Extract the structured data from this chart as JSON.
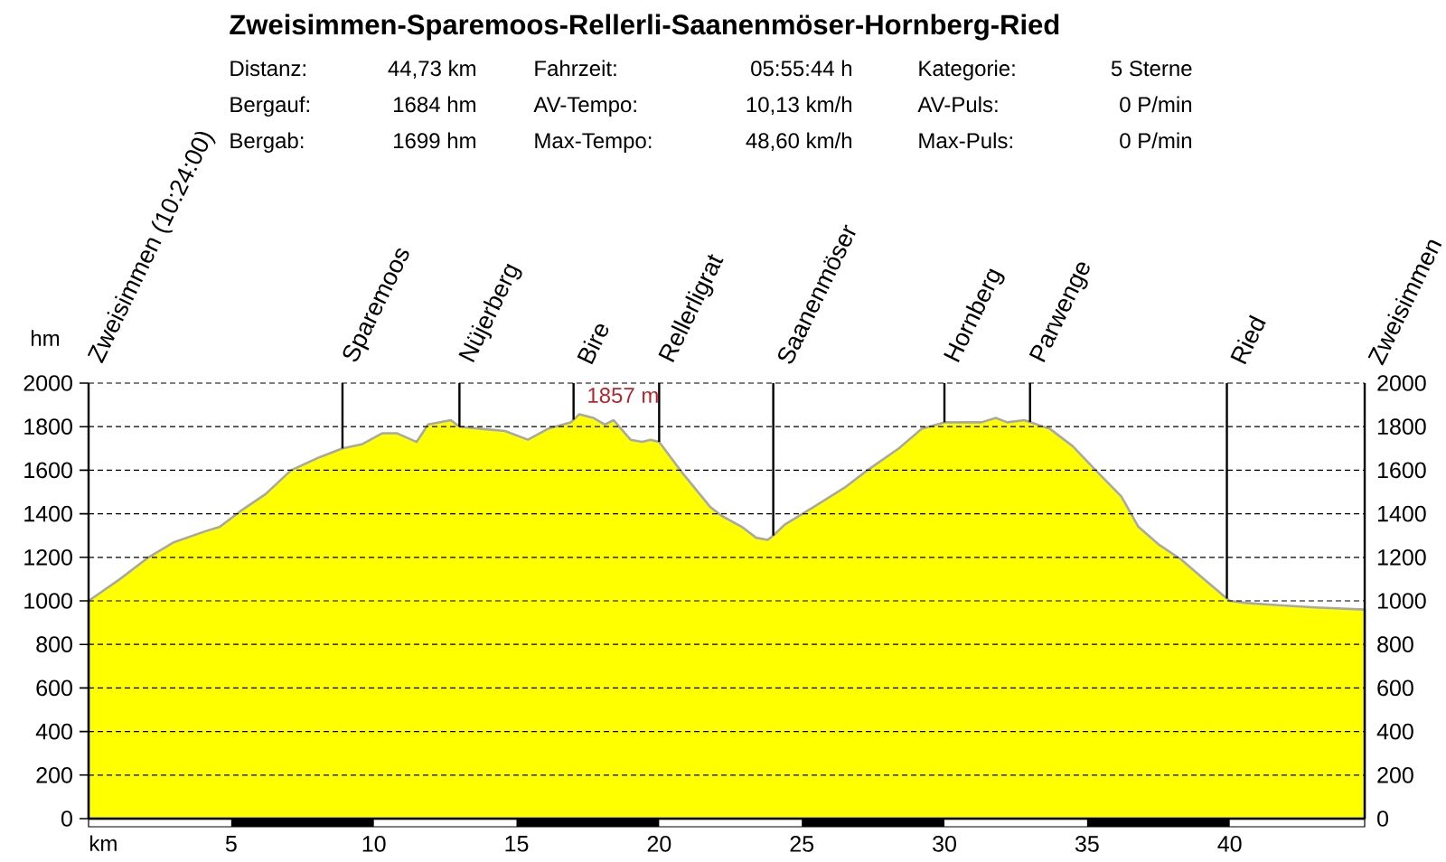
{
  "chart_data": {
    "type": "area",
    "title": "Zweisimmen-Sparemoos-Rellerli-Saanenmöser-Hornberg-Ried",
    "xlabel": "km",
    "ylabel": "hm",
    "x": [
      0,
      1.1,
      2.1,
      3.0,
      4.1,
      4.6,
      5.3,
      6.2,
      7.1,
      8.1,
      8.9,
      9.6,
      10.3,
      10.8,
      11.5,
      11.9,
      12.7,
      13.0,
      13.8,
      14.6,
      15.4,
      16.1,
      16.9,
      17.2,
      17.7,
      18.1,
      18.4,
      19.0,
      19.4,
      19.7,
      20.0,
      20.8,
      21.8,
      22.2,
      22.9,
      23.4,
      23.8,
      24.0,
      24.4,
      25.4,
      26.5,
      27.3,
      28.4,
      29.2,
      30.0,
      30.7,
      31.3,
      31.8,
      32.2,
      32.8,
      33.7,
      34.5,
      35.3,
      36.2,
      36.8,
      37.5,
      38.3,
      39.1,
      40.0,
      40.6,
      41.7,
      43.0,
      44.73
    ],
    "series": [
      {
        "color": "#ffff00",
        "values": [
          1000,
          1100,
          1200,
          1270,
          1320,
          1340,
          1410,
          1490,
          1600,
          1660,
          1700,
          1720,
          1770,
          1770,
          1730,
          1810,
          1830,
          1800,
          1790,
          1780,
          1740,
          1790,
          1820,
          1857,
          1840,
          1810,
          1830,
          1740,
          1730,
          1740,
          1730,
          1590,
          1430,
          1390,
          1340,
          1290,
          1280,
          1300,
          1350,
          1430,
          1520,
          1600,
          1700,
          1790,
          1820,
          1820,
          1820,
          1840,
          1820,
          1830,
          1790,
          1710,
          1600,
          1480,
          1340,
          1260,
          1190,
          1100,
          1000,
          990,
          980,
          970,
          960
        ]
      }
    ],
    "xlim": [
      0,
      44.73
    ],
    "xticks": [
      5,
      10,
      15,
      20,
      25,
      30,
      35,
      40
    ],
    "ylim": [
      0,
      2000
    ],
    "yticks": [
      0,
      200,
      400,
      600,
      800,
      1000,
      1200,
      1400,
      1600,
      1800,
      2000
    ],
    "y2lim": [
      0,
      2000
    ],
    "y2ticks": [
      0,
      200,
      400,
      600,
      800,
      1000,
      1200,
      1400,
      1600,
      1800,
      2000
    ],
    "grid": "y",
    "ref_lines": [
      {
        "axis": "x",
        "value": 8.9,
        "label": "Sparemoos"
      },
      {
        "axis": "x",
        "value": 13.0,
        "label": "Nüjerberg"
      },
      {
        "axis": "x",
        "value": 17.0,
        "label": "Bire"
      },
      {
        "axis": "x",
        "value": 20.0,
        "label": "Rellerligrat"
      },
      {
        "axis": "x",
        "value": 24.0,
        "label": "Saanenmöser"
      },
      {
        "axis": "x",
        "value": 30.0,
        "label": "Hornberg"
      },
      {
        "axis": "x",
        "value": 33.0,
        "label": "Parwenge"
      },
      {
        "axis": "x",
        "value": 39.9,
        "label": "Ried"
      }
    ],
    "annotations": [
      "Distanz:",
      "44,73 km",
      "Fahrzeit:",
      "05:55:44 h",
      "Kategorie:",
      "5 Sterne",
      "Bergauf:",
      "1684 hm",
      "AV-Tempo:",
      "10,13 km/h",
      "AV-Puls:",
      "0 P/min",
      "Bergab:",
      "1699 hm",
      "Max-Tempo:",
      "48,60 km/h",
      "Max-Puls:",
      "0 P/min",
      "Zweisimmen (10:24:00)",
      "Zweisimmen",
      {
        "text": "1857 m",
        "x": 17.2,
        "y": 1857
      }
    ]
  }
}
